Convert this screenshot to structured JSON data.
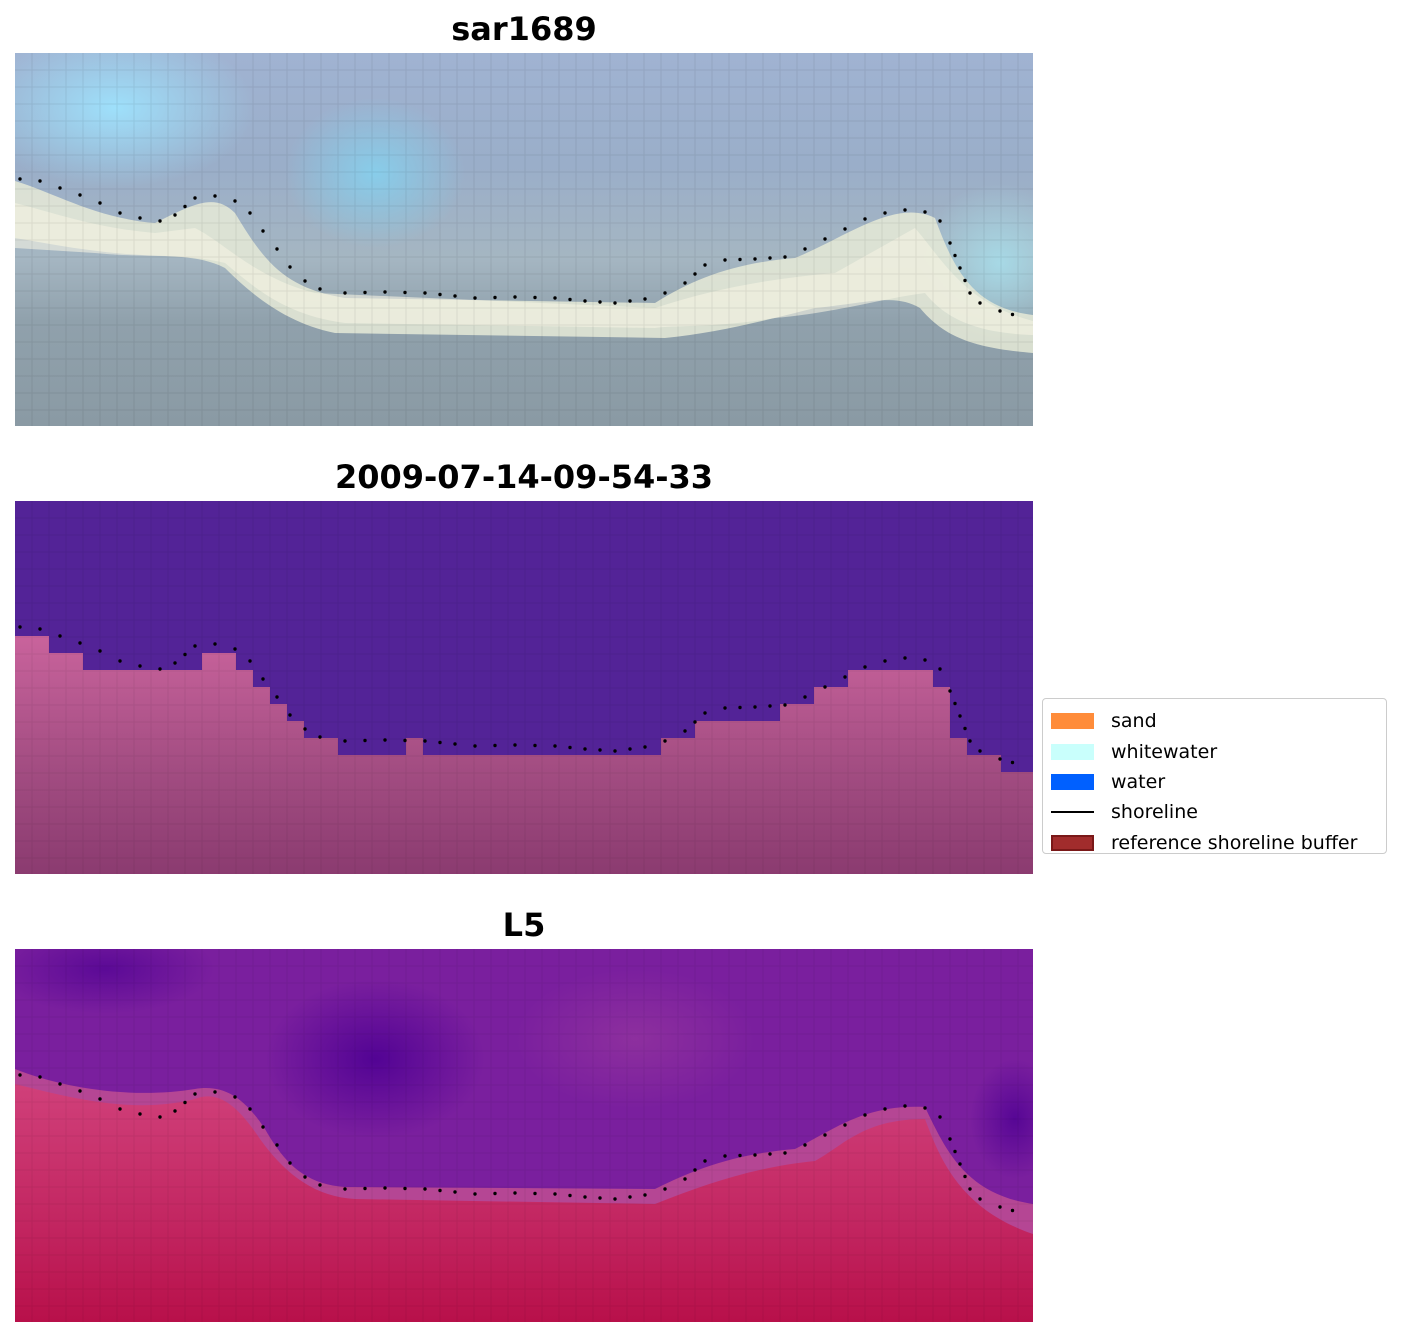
{
  "panels": [
    {
      "id": "rgb",
      "title": "sar1689",
      "kind": "rgb-image"
    },
    {
      "id": "classification",
      "title": "2009-07-14-09-54-33",
      "kind": "classified-image"
    },
    {
      "id": "index",
      "title": "L5",
      "kind": "index-image"
    }
  ],
  "legend": {
    "items": [
      {
        "label": "sand",
        "type": "patch",
        "color": "#ff8c3a"
      },
      {
        "label": "whitewater",
        "type": "patch",
        "color": "#c9fffc"
      },
      {
        "label": "water",
        "type": "patch",
        "color": "#0060ff"
      },
      {
        "label": "shoreline",
        "type": "line",
        "color": "#000000"
      },
      {
        "label": "reference shoreline buffer",
        "type": "patch",
        "color": "#a12c2c",
        "edge": "#7a1818"
      }
    ]
  }
}
